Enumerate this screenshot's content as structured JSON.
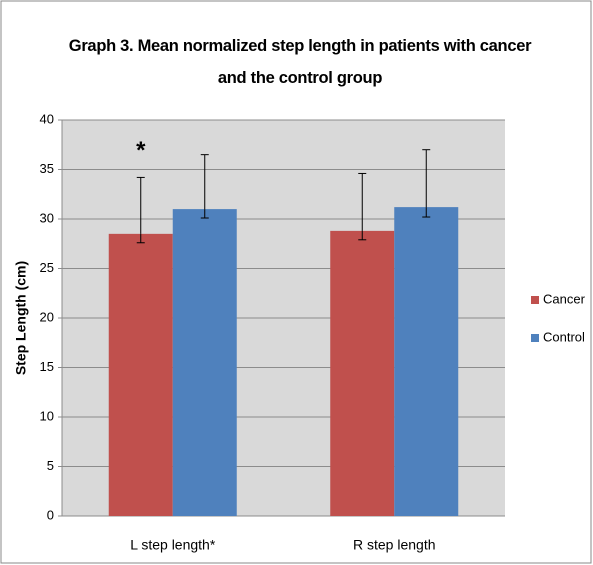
{
  "chart_data": {
    "type": "bar",
    "title": "Graph 3. Mean normalized step length in patients with cancer and the control group",
    "ylabel": "Step Length (cm)",
    "categories": [
      "L step length*",
      "R step length"
    ],
    "series": [
      {
        "name": "Cancer",
        "color": "#c0504d",
        "values": [
          28.5,
          28.8
        ],
        "error_plus": [
          5.7,
          5.8
        ],
        "error_minus": [
          0.9,
          0.9
        ]
      },
      {
        "name": "Control",
        "color": "#4f81bd",
        "values": [
          31.0,
          31.2
        ],
        "error_plus": [
          5.5,
          5.8
        ],
        "error_minus": [
          0.9,
          1.0
        ]
      }
    ],
    "annotation": "*",
    "ylim": [
      0,
      40
    ],
    "yticks": [
      0,
      5,
      10,
      15,
      20,
      25,
      30,
      35,
      40
    ],
    "grid": true,
    "legend": "right"
  }
}
